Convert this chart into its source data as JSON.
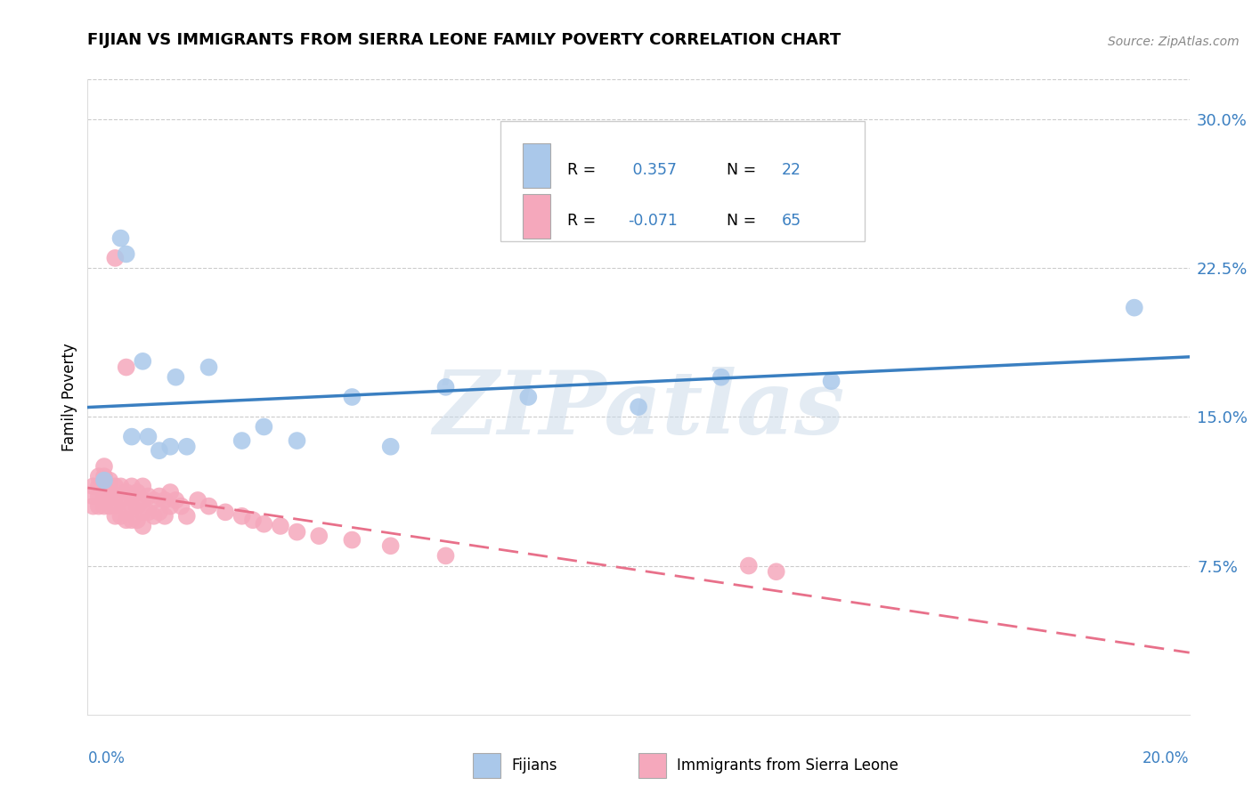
{
  "title": "FIJIAN VS IMMIGRANTS FROM SIERRA LEONE FAMILY POVERTY CORRELATION CHART",
  "source": "Source: ZipAtlas.com",
  "ylabel": "Family Poverty",
  "watermark": "ZIPatlas",
  "fijian_R": 0.357,
  "fijian_N": 22,
  "sierra_R": -0.071,
  "sierra_N": 65,
  "fijian_color": "#aac8ea",
  "sierra_color": "#f5a8bc",
  "fijian_line_color": "#3a7fc1",
  "sierra_line_color": "#e8708a",
  "ytick_labels": [
    "7.5%",
    "15.0%",
    "22.5%",
    "30.0%"
  ],
  "ytick_values": [
    0.075,
    0.15,
    0.225,
    0.3
  ],
  "xlim": [
    0.0,
    0.2
  ],
  "ylim": [
    0.0,
    0.32
  ],
  "fijian_x": [
    0.003,
    0.006,
    0.007,
    0.008,
    0.01,
    0.011,
    0.013,
    0.015,
    0.016,
    0.018,
    0.022,
    0.028,
    0.032,
    0.038,
    0.048,
    0.055,
    0.065,
    0.08,
    0.1,
    0.115,
    0.135,
    0.19
  ],
  "fijian_y": [
    0.118,
    0.24,
    0.232,
    0.14,
    0.178,
    0.14,
    0.133,
    0.135,
    0.17,
    0.135,
    0.175,
    0.138,
    0.145,
    0.138,
    0.16,
    0.135,
    0.165,
    0.16,
    0.155,
    0.17,
    0.168,
    0.205
  ],
  "sierra_x": [
    0.001,
    0.001,
    0.001,
    0.002,
    0.002,
    0.002,
    0.002,
    0.003,
    0.003,
    0.003,
    0.003,
    0.004,
    0.004,
    0.004,
    0.004,
    0.005,
    0.005,
    0.005,
    0.005,
    0.005,
    0.006,
    0.006,
    0.006,
    0.007,
    0.007,
    0.007,
    0.007,
    0.008,
    0.008,
    0.008,
    0.008,
    0.009,
    0.009,
    0.009,
    0.01,
    0.01,
    0.01,
    0.01,
    0.011,
    0.011,
    0.012,
    0.012,
    0.013,
    0.013,
    0.014,
    0.014,
    0.015,
    0.015,
    0.016,
    0.017,
    0.018,
    0.02,
    0.022,
    0.025,
    0.028,
    0.03,
    0.032,
    0.035,
    0.038,
    0.042,
    0.048,
    0.055,
    0.065,
    0.12,
    0.125
  ],
  "sierra_y": [
    0.115,
    0.11,
    0.105,
    0.11,
    0.115,
    0.12,
    0.105,
    0.12,
    0.125,
    0.11,
    0.105,
    0.118,
    0.11,
    0.105,
    0.115,
    0.23,
    0.115,
    0.11,
    0.105,
    0.1,
    0.115,
    0.108,
    0.1,
    0.175,
    0.112,
    0.105,
    0.098,
    0.115,
    0.11,
    0.105,
    0.098,
    0.112,
    0.105,
    0.098,
    0.115,
    0.108,
    0.102,
    0.095,
    0.11,
    0.102,
    0.108,
    0.1,
    0.11,
    0.102,
    0.108,
    0.1,
    0.112,
    0.105,
    0.108,
    0.105,
    0.1,
    0.108,
    0.105,
    0.102,
    0.1,
    0.098,
    0.096,
    0.095,
    0.092,
    0.09,
    0.088,
    0.085,
    0.08,
    0.075,
    0.072
  ]
}
